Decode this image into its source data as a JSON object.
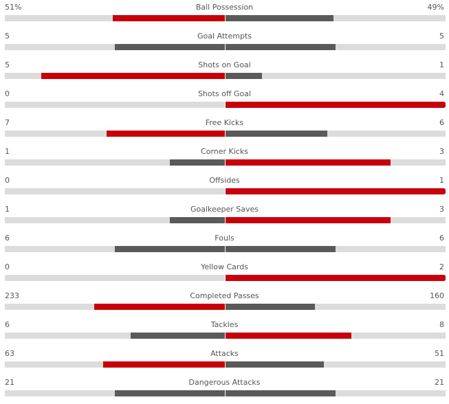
{
  "colors": {
    "leading": "#c8000a",
    "trailing": "#5a5a5a",
    "track": "#dcdcdc",
    "text": "#555555"
  },
  "stats": [
    {
      "name": "Ball Possession",
      "home": "51%",
      "away": "49%",
      "home_share": 0.51,
      "away_share": 0.49
    },
    {
      "name": "Goal Attempts",
      "home": "5",
      "away": "5",
      "home_share": 0.5,
      "away_share": 0.5
    },
    {
      "name": "Shots on Goal",
      "home": "5",
      "away": "1",
      "home_share": 0.833,
      "away_share": 0.167
    },
    {
      "name": "Shots off Goal",
      "home": "0",
      "away": "4",
      "home_share": 0,
      "away_share": 1
    },
    {
      "name": "Free Kicks",
      "home": "7",
      "away": "6",
      "home_share": 0.538,
      "away_share": 0.462
    },
    {
      "name": "Corner Kicks",
      "home": "1",
      "away": "3",
      "home_share": 0.25,
      "away_share": 0.75
    },
    {
      "name": "Offsides",
      "home": "0",
      "away": "1",
      "home_share": 0,
      "away_share": 1
    },
    {
      "name": "Goalkeeper Saves",
      "home": "1",
      "away": "3",
      "home_share": 0.25,
      "away_share": 0.75
    },
    {
      "name": "Fouls",
      "home": "6",
      "away": "6",
      "home_share": 0.5,
      "away_share": 0.5
    },
    {
      "name": "Yellow Cards",
      "home": "0",
      "away": "2",
      "home_share": 0,
      "away_share": 1
    },
    {
      "name": "Completed Passes",
      "home": "233",
      "away": "160",
      "home_share": 0.593,
      "away_share": 0.407
    },
    {
      "name": "Tackles",
      "home": "6",
      "away": "8",
      "home_share": 0.429,
      "away_share": 0.571
    },
    {
      "name": "Attacks",
      "home": "63",
      "away": "51",
      "home_share": 0.553,
      "away_share": 0.447
    },
    {
      "name": "Dangerous Attacks",
      "home": "21",
      "away": "21",
      "home_share": 0.5,
      "away_share": 0.5
    }
  ]
}
